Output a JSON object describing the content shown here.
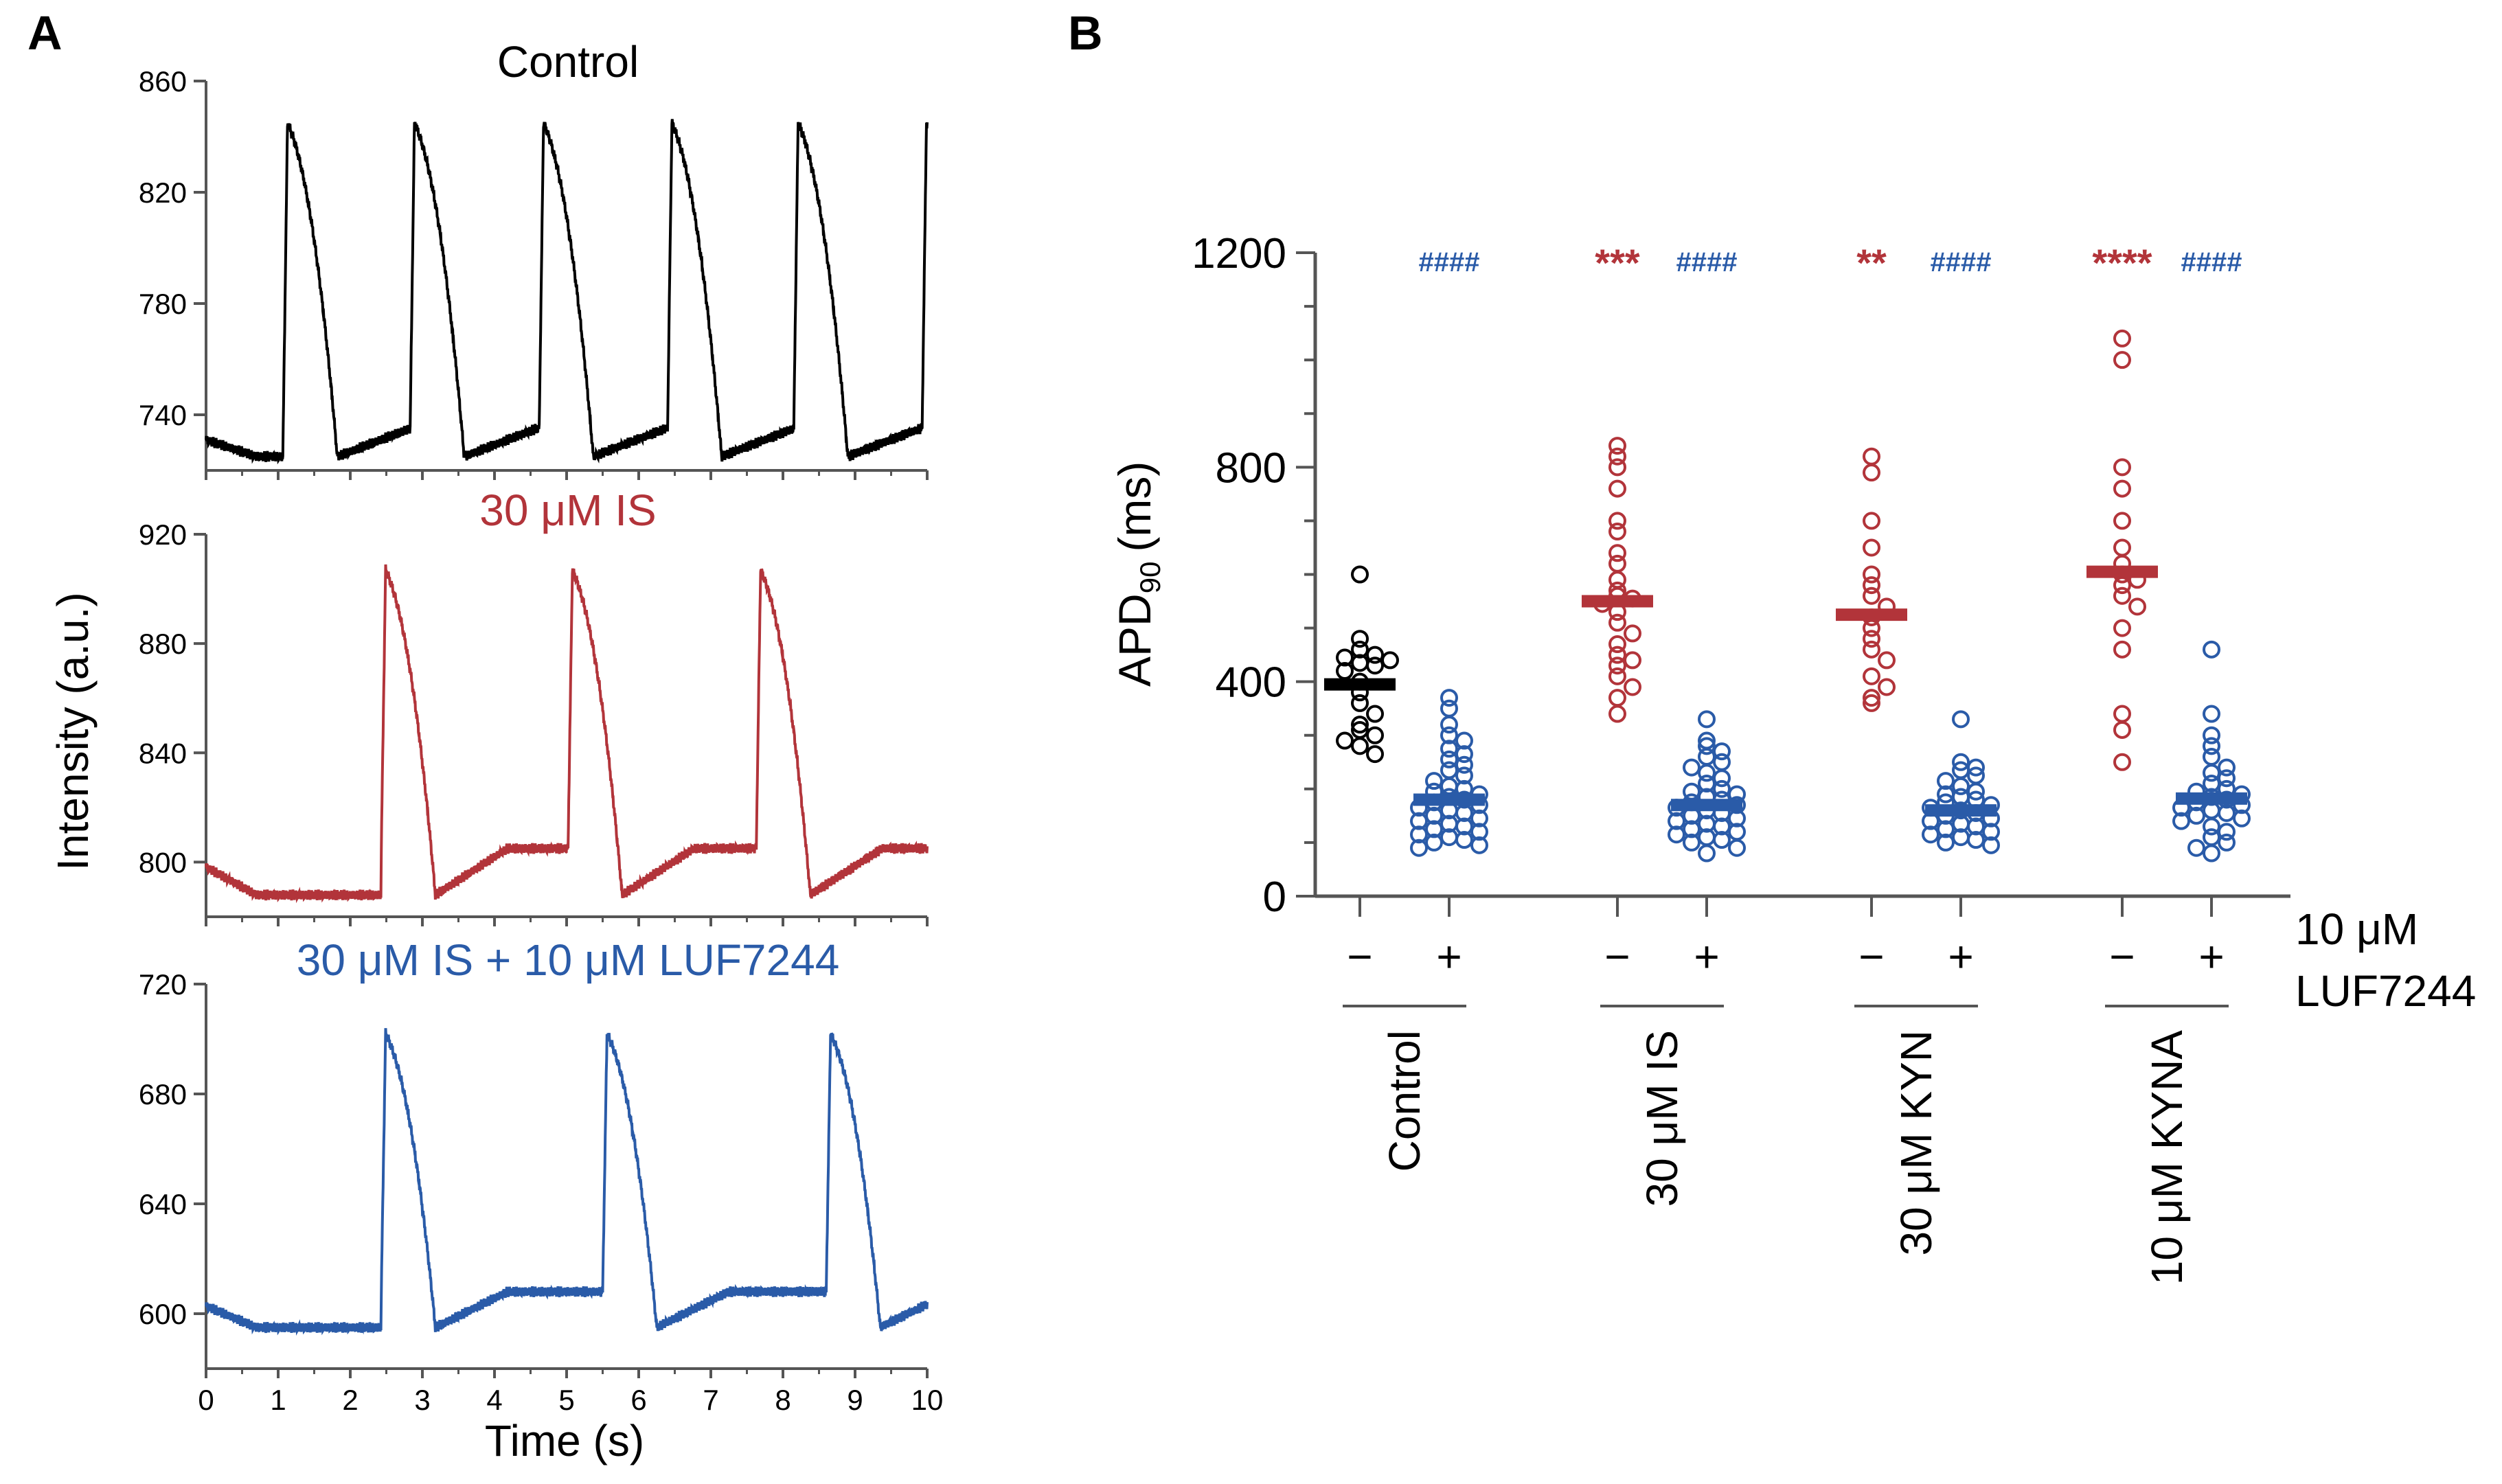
{
  "colors": {
    "black": "#000000",
    "red": "#b2343a",
    "blue": "#2a5ba8",
    "axis": "#555555"
  },
  "panel_labels": {
    "a": "A",
    "b": "B"
  },
  "panel_a": {
    "ylabel": "Intensity (a.u.)",
    "xlabel": "Time (s)",
    "traces": [
      {
        "title": "Control",
        "color": "#000000",
        "ylim": [
          720,
          860
        ],
        "yticks": [
          "740",
          "780",
          "820",
          "860"
        ],
        "ytick_values": [
          740,
          780,
          820,
          860
        ]
      },
      {
        "title": "30 μM IS",
        "color": "#b2343a",
        "ylim": [
          780,
          920
        ],
        "yticks": [
          "800",
          "840",
          "880",
          "920"
        ],
        "ytick_values": [
          800,
          840,
          880,
          920
        ]
      },
      {
        "title": "30 μM IS + 10 μM LUF7244",
        "color": "#2a5ba8",
        "ylim": [
          580,
          720
        ],
        "yticks": [
          "600",
          "640",
          "680",
          "720"
        ],
        "ytick_values": [
          600,
          640,
          680,
          720
        ]
      }
    ],
    "xticks": [
      "0",
      "1",
      "2",
      "3",
      "4",
      "5",
      "6",
      "7",
      "8",
      "9",
      "10"
    ]
  },
  "chart_data": [
    {
      "type": "line",
      "title": "Control",
      "xlabel": "Time (s)",
      "ylabel": "Intensity (a.u.)",
      "xlim": [
        0,
        10
      ],
      "ylim": [
        720,
        860
      ],
      "series": [
        {
          "name": "Control",
          "baseline": 725,
          "plateau": 735,
          "peak": 845,
          "upstroke_times": [
            1.07,
            2.83,
            4.62,
            6.4,
            8.15,
            9.93
          ]
        }
      ]
    },
    {
      "type": "line",
      "title": "30 μM IS",
      "xlabel": "Time (s)",
      "ylabel": "Intensity (a.u.)",
      "xlim": [
        0,
        10
      ],
      "ylim": [
        780,
        920
      ],
      "series": [
        {
          "name": "30 μM IS",
          "baseline": 788,
          "plateau": 805,
          "peak": 907,
          "upstroke_times": [
            2.43,
            5.02,
            7.63
          ]
        }
      ]
    },
    {
      "type": "line",
      "title": "30 μM IS + 10 μM LUF7244",
      "xlabel": "Time (s)",
      "ylabel": "Intensity (a.u.)",
      "xlim": [
        0,
        10
      ],
      "ylim": [
        580,
        720
      ],
      "series": [
        {
          "name": "30 μM IS + 10 μM LUF7244",
          "baseline": 595,
          "plateau": 608,
          "peak": 702,
          "upstroke_times": [
            2.43,
            5.5,
            8.6
          ]
        }
      ]
    },
    {
      "type": "scatter",
      "title": "",
      "ylabel": "APD90 (ms)",
      "ylabel_main": "APD",
      "ylabel_sub": "90",
      "ylabel_unit": "(ms)",
      "ylim": [
        0,
        1200
      ],
      "yticks": [
        "0",
        "400",
        "800",
        "1200"
      ],
      "ytick_values": [
        0,
        400,
        800,
        1200
      ],
      "luf_label_line1": "10 μM",
      "luf_label_line2": "LUF7244",
      "groups": [
        {
          "name": "Control",
          "conditions": [
            {
              "luf": "−",
              "color": "#000000",
              "mean": 395,
              "sig": "",
              "points": [
                600,
                480,
                460,
                450,
                445,
                440,
                435,
                430,
                420,
                400,
                380,
                360,
                340,
                320,
                310,
                300,
                290,
                280,
                265
              ]
            },
            {
              "luf": "+",
              "color": "#2a5ba8",
              "mean": 180,
              "sig": "####",
              "points": [
                370,
                350,
                320,
                300,
                290,
                275,
                265,
                255,
                245,
                235,
                225,
                215,
                205,
                200,
                195,
                190,
                185,
                180,
                175,
                170,
                165,
                160,
                155,
                150,
                145,
                140,
                135,
                130,
                125,
                120,
                115,
                110,
                105,
                100,
                95,
                90
              ]
            }
          ]
        },
        {
          "name": "30 μM IS",
          "conditions": [
            {
              "luf": "−",
              "color": "#b2343a",
              "mean": 550,
              "sig": "***",
              "points": [
                840,
                820,
                800,
                760,
                700,
                680,
                640,
                620,
                590,
                570,
                560,
                555,
                545,
                530,
                510,
                490,
                470,
                450,
                440,
                430,
                410,
                390,
                370,
                340
              ]
            },
            {
              "luf": "+",
              "color": "#2a5ba8",
              "mean": 170,
              "sig": "####",
              "points": [
                330,
                290,
                280,
                270,
                260,
                250,
                240,
                230,
                220,
                210,
                200,
                195,
                190,
                185,
                180,
                175,
                170,
                165,
                160,
                155,
                150,
                145,
                140,
                135,
                130,
                125,
                120,
                115,
                110,
                105,
                100,
                90,
                80
              ]
            }
          ]
        },
        {
          "name": "30 μM KYN",
          "conditions": [
            {
              "luf": "−",
              "color": "#b2343a",
              "mean": 525,
              "sig": "**",
              "points": [
                820,
                790,
                700,
                650,
                600,
                580,
                560,
                540,
                520,
                500,
                480,
                460,
                440,
                410,
                390,
                370,
                360
              ]
            },
            {
              "luf": "+",
              "color": "#2a5ba8",
              "mean": 160,
              "sig": "####",
              "points": [
                330,
                250,
                240,
                235,
                225,
                215,
                205,
                195,
                190,
                185,
                180,
                175,
                170,
                165,
                160,
                155,
                150,
                145,
                140,
                135,
                130,
                125,
                120,
                115,
                110,
                105,
                100,
                95
              ]
            }
          ]
        },
        {
          "name": "10 μM KYNA",
          "conditions": [
            {
              "luf": "−",
              "color": "#b2343a",
              "mean": 605,
              "sig": "****",
              "points": [
                1040,
                1000,
                800,
                760,
                700,
                650,
                620,
                600,
                590,
                580,
                560,
                540,
                500,
                460,
                340,
                310,
                250
              ]
            },
            {
              "luf": "+",
              "color": "#2a5ba8",
              "mean": 182,
              "sig": "####",
              "points": [
                460,
                340,
                300,
                280,
                260,
                240,
                230,
                220,
                210,
                200,
                195,
                190,
                185,
                180,
                175,
                170,
                165,
                160,
                155,
                150,
                145,
                140,
                130,
                120,
                110,
                100,
                90,
                80
              ]
            }
          ]
        }
      ]
    }
  ]
}
